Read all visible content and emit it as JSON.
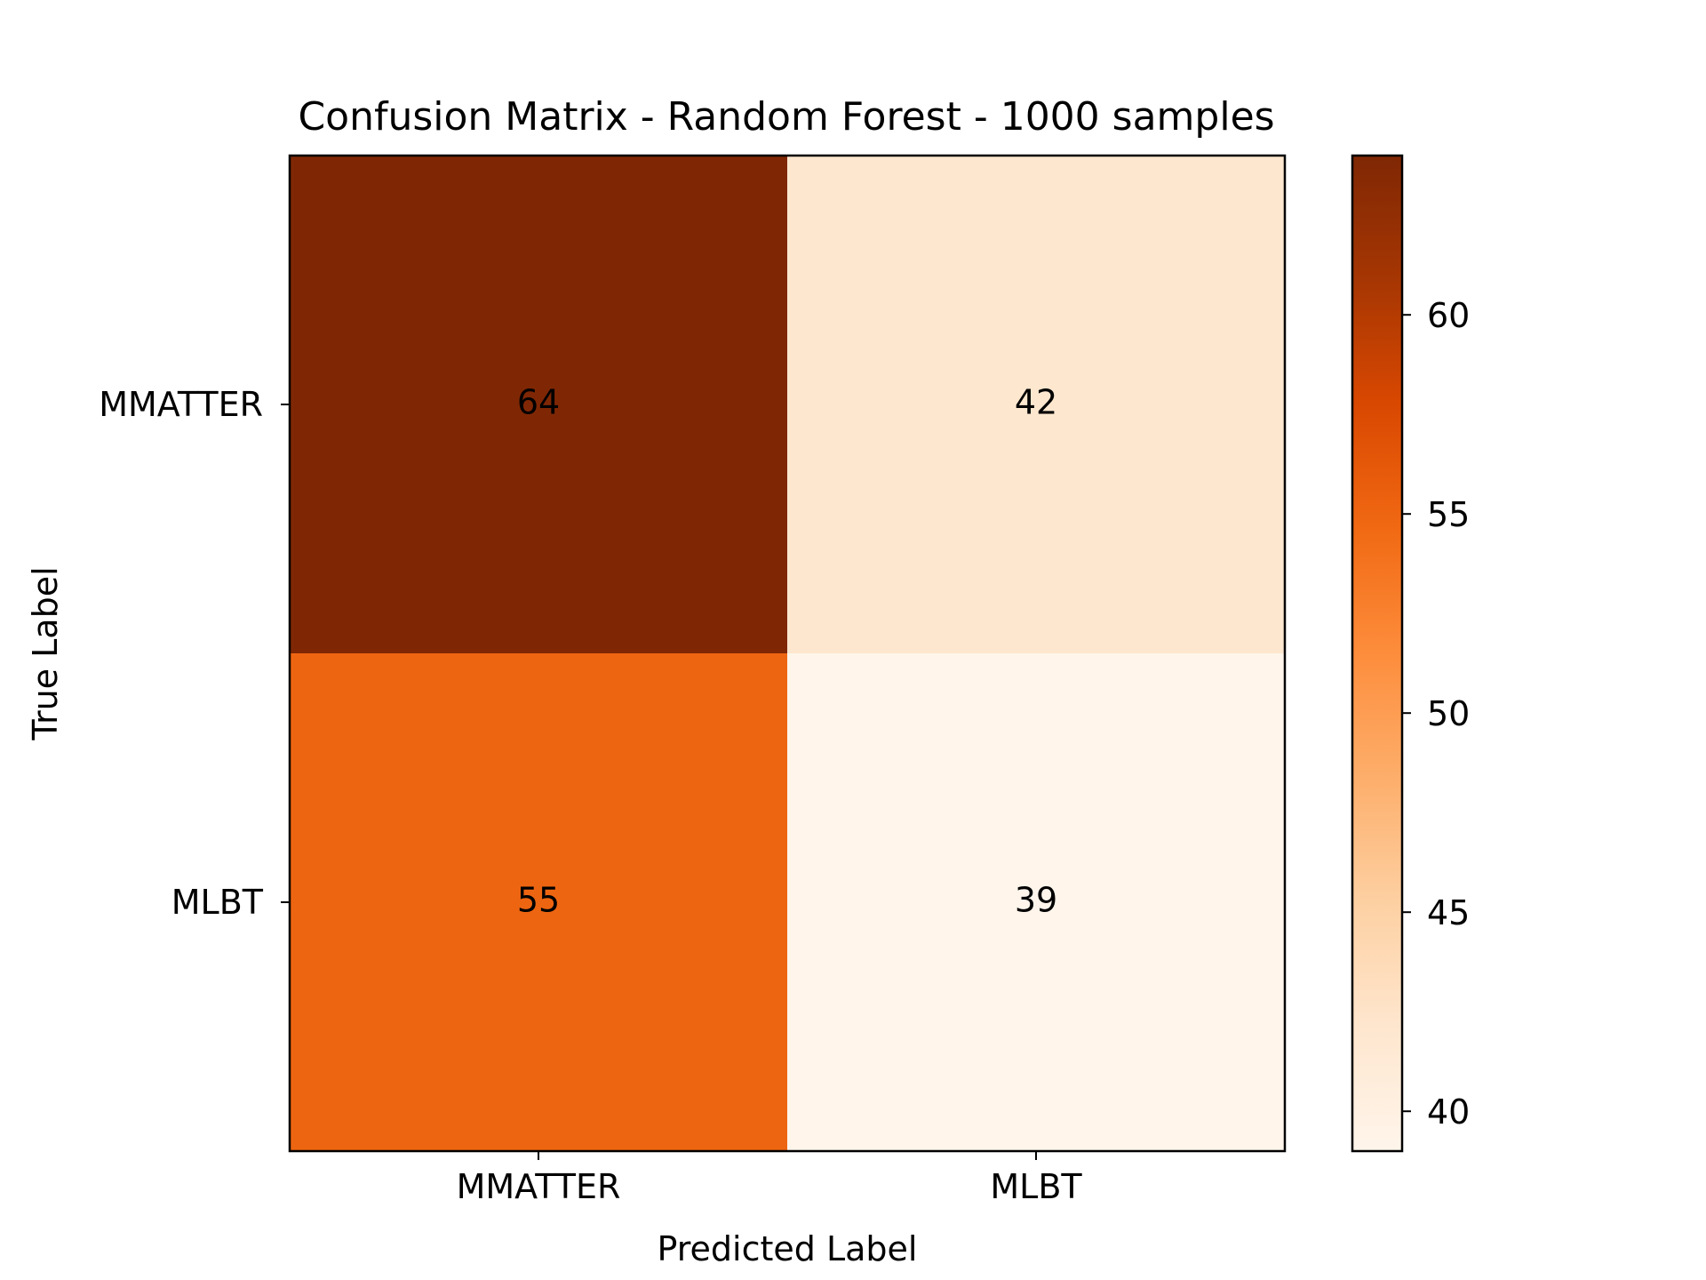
{
  "chart_data": {
    "type": "heatmap",
    "title": "Confusion Matrix - Random Forest - 1000 samples",
    "xlabel": "Predicted Label",
    "ylabel": "True Label",
    "x_categories": [
      "MMATTER",
      "MLBT"
    ],
    "y_categories": [
      "MMATTER",
      "MLBT"
    ],
    "values": [
      [
        64,
        42
      ],
      [
        55,
        39
      ]
    ],
    "colormap": "Oranges",
    "colorbar": {
      "min": 39,
      "max": 64,
      "ticks": [
        40,
        45,
        50,
        55,
        60
      ]
    },
    "grid": false
  },
  "colors": {
    "cmap_stops": [
      "#fff5eb",
      "#fee6ce",
      "#fdd0a2",
      "#fdae6b",
      "#fd8d3c",
      "#f16913",
      "#d94801",
      "#a63603",
      "#7f2704"
    ],
    "annotation_text": "#000000",
    "frame": "#000000"
  }
}
